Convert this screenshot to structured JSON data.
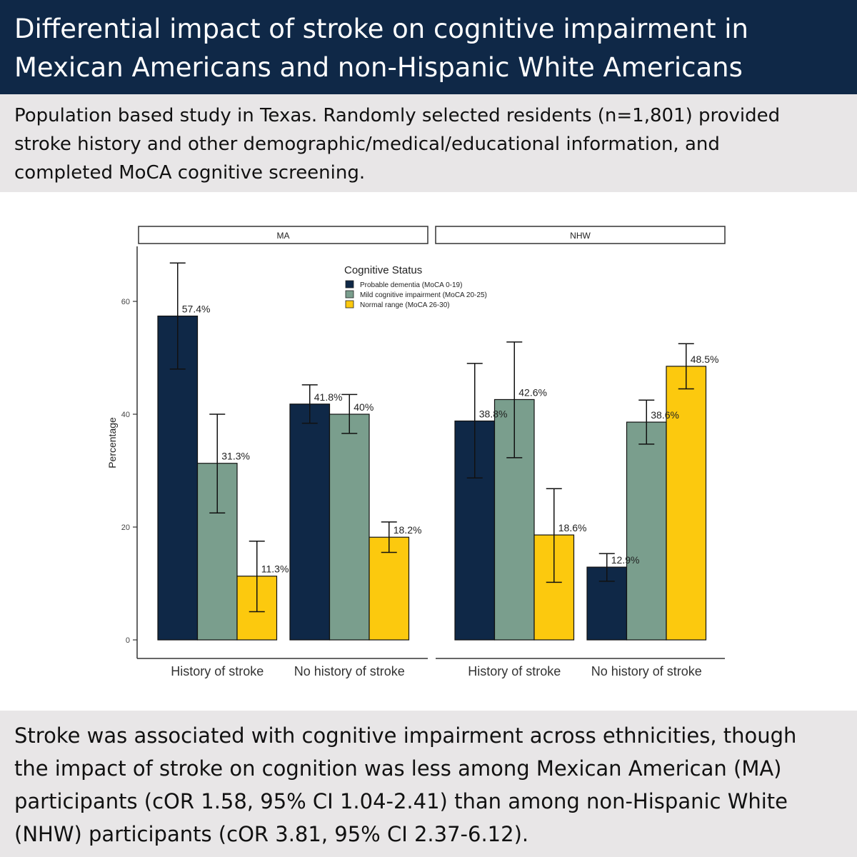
{
  "header": {
    "title_lines": [
      "Differential impact of stroke on cognitive impairment in",
      "Mexican Americans and non-Hispanic White Americans"
    ]
  },
  "subtitle": {
    "lines": [
      "Population based study in Texas. Randomly selected residents (n=1,801) provided",
      "stroke history and other demographic/medical/educational information, and",
      "completed MoCA cognitive screening."
    ]
  },
  "footer": {
    "lines": [
      "Stroke was associated with cognitive impairment across ethnicities, though",
      "the impact of stroke on cognition was less among Mexican American (MA)",
      "participants (cOR 1.58, 95% CI 1.04-2.41) than among non-Hispanic White",
      "(NHW) participants (cOR 3.81, 95% CI 2.37-6.12)."
    ]
  },
  "chart_data": {
    "type": "bar",
    "ylabel": "Percentage",
    "ylim": [
      0,
      70
    ],
    "yticks": [
      0,
      20,
      40,
      60
    ],
    "legend": {
      "title": "Cognitive Status",
      "placement": "top-center",
      "entries": [
        "Probable dementia (MoCA 0-19)",
        "Mild cognitive impairment (MoCA 20-25)",
        "Normal range (MoCA 26-30)"
      ]
    },
    "colors": [
      "#0f2847",
      "#7a9e8d",
      "#fcc90e"
    ],
    "facets": [
      {
        "label": "MA",
        "categories": [
          "History of stroke",
          "No history of stroke"
        ],
        "series": [
          {
            "values": [
              57.4,
              41.8
            ],
            "labels": [
              "57.4%",
              "41.8%"
            ],
            "err_low": [
              48.0,
              38.4
            ],
            "err_high": [
              66.8,
              45.2
            ]
          },
          {
            "values": [
              31.3,
              40.0
            ],
            "labels": [
              "31.3%",
              "40%"
            ],
            "err_low": [
              22.5,
              36.6
            ],
            "err_high": [
              40.0,
              43.5
            ]
          },
          {
            "values": [
              11.3,
              18.2
            ],
            "labels": [
              "11.3%",
              "18.2%"
            ],
            "err_low": [
              5.0,
              15.5
            ],
            "err_high": [
              17.5,
              20.9
            ]
          }
        ]
      },
      {
        "label": "NHW",
        "categories": [
          "History of stroke",
          "No history of stroke"
        ],
        "series": [
          {
            "values": [
              38.8,
              12.9
            ],
            "labels": [
              "38.8%",
              "12.9%"
            ],
            "err_low": [
              28.7,
              10.4
            ],
            "err_high": [
              49.0,
              15.3
            ]
          },
          {
            "values": [
              42.6,
              38.6
            ],
            "labels": [
              "42.6%",
              "38.6%"
            ],
            "err_low": [
              32.3,
              34.7
            ],
            "err_high": [
              52.8,
              42.5
            ]
          },
          {
            "values": [
              18.6,
              48.5
            ],
            "labels": [
              "18.6%",
              "48.5%"
            ],
            "err_low": [
              10.2,
              44.5
            ],
            "err_high": [
              26.8,
              52.5
            ]
          }
        ]
      }
    ]
  }
}
